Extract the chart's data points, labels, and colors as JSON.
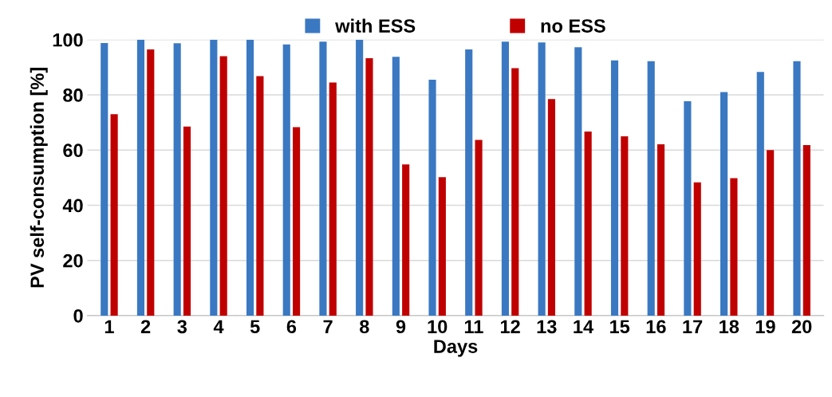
{
  "chart_data": {
    "type": "bar",
    "xlabel": "Days",
    "ylabel": "PV self-consumption [%]",
    "categories": [
      "1",
      "2",
      "3",
      "4",
      "5",
      "6",
      "7",
      "8",
      "9",
      "10",
      "11",
      "12",
      "13",
      "14",
      "15",
      "16",
      "17",
      "18",
      "19",
      "20"
    ],
    "series": [
      {
        "name": "with ESS",
        "color": "#3a78c2",
        "values": [
          98.8,
          100,
          98.7,
          100,
          100,
          98.3,
          99.3,
          100,
          93.8,
          85.5,
          96.5,
          99.3,
          99,
          97.3,
          92.5,
          92.2,
          77.7,
          81,
          88.3,
          92.2
        ]
      },
      {
        "name": "no ESS",
        "color": "#c00000",
        "values": [
          73,
          96.5,
          68.5,
          94,
          86.8,
          68.3,
          84.5,
          93.3,
          54.8,
          50.2,
          63.7,
          89.7,
          78.5,
          66.7,
          65,
          62.1,
          48.3,
          49.8,
          60,
          61.8
        ]
      }
    ],
    "ylim": [
      0,
      100
    ],
    "yticks": [
      0,
      20,
      40,
      60,
      80,
      100
    ],
    "grid": "y",
    "legend": "top"
  }
}
